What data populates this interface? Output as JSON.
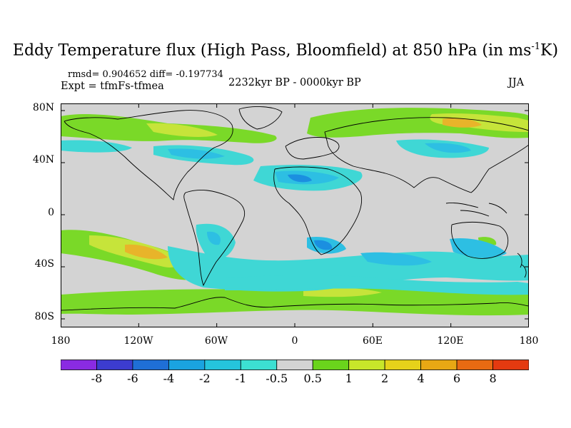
{
  "title": "Eddy Temperature flux (High Pass, Bloomfield) at 850 hPa (in ms",
  "title_sup": "-1",
  "title_end": "K)",
  "stats": "rmsd= 0.904652 diff= -0.197734",
  "expt": "Expt = tfmFs-tfmea",
  "period": "2232kyr BP - 0000kyr BP",
  "season": "JJA",
  "lat_ticks": [
    "80N",
    "40N",
    "0",
    "40S",
    "80S"
  ],
  "lon_ticks": [
    "180",
    "120W",
    "60W",
    "0",
    "60E",
    "120E",
    "180"
  ],
  "colorbar": {
    "labels": [
      "-8",
      "-6",
      "-4",
      "-2",
      "-1",
      "-0.5",
      "0.5",
      "1",
      "2",
      "4",
      "6",
      "8"
    ],
    "colors": [
      "#8a2be2",
      "#3c3ccf",
      "#1f6fd6",
      "#1aa3e0",
      "#25c4dc",
      "#3ce0d2",
      "#d3d3d3",
      "#6ad41c",
      "#c8e62a",
      "#e6d21a",
      "#e8a814",
      "#e86a12",
      "#e43a10"
    ]
  },
  "field_colors": {
    "neutral": "#d3d3d3",
    "pos_low": "#7ad928",
    "pos_mid": "#c6e43a",
    "pos_high": "#e8b42a",
    "neg_low": "#3fd7d5",
    "neg_mid": "#2dbfe3",
    "neg_high": "#1b8fe0",
    "coast": "#000000"
  }
}
